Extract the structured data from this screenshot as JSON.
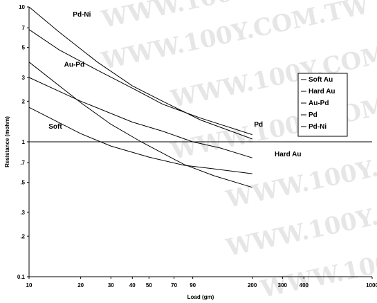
{
  "chart_data": {
    "type": "line",
    "xscale": "log",
    "yscale": "log",
    "xlim": [
      10,
      1000
    ],
    "ylim": [
      0.1,
      10
    ],
    "xlabel": "Load (gm)",
    "ylabel": "Resistance (mohm)",
    "x_ticks": [
      {
        "value": 10,
        "label": "10"
      },
      {
        "value": 20,
        "label": "20"
      },
      {
        "value": 30,
        "label": "30"
      },
      {
        "value": 40,
        "label": "40"
      },
      {
        "value": 50,
        "label": "50"
      },
      {
        "value": 70,
        "label": "70"
      },
      {
        "value": 90,
        "label": "90"
      },
      {
        "value": 200,
        "label": "200"
      },
      {
        "value": 300,
        "label": "300"
      },
      {
        "value": 400,
        "label": "400"
      },
      {
        "value": 1000,
        "label": "1000"
      }
    ],
    "y_ticks": [
      {
        "value": 0.1,
        "label": "0.1"
      },
      {
        "value": 0.2,
        "label": ".2"
      },
      {
        "value": 0.3,
        "label": ".3"
      },
      {
        "value": 0.5,
        "label": ".5"
      },
      {
        "value": 0.7,
        "label": ".7"
      },
      {
        "value": 1,
        "label": "1"
      },
      {
        "value": 2,
        "label": "2"
      },
      {
        "value": 3,
        "label": "3"
      },
      {
        "value": 5,
        "label": "5"
      },
      {
        "value": 7,
        "label": "7"
      },
      {
        "value": 10,
        "label": "10"
      }
    ],
    "reference_line": {
      "y": 1
    },
    "series": [
      {
        "name": "Soft Au",
        "points": [
          [
            10,
            1.8
          ],
          [
            20,
            1.15
          ],
          [
            30,
            0.93
          ],
          [
            50,
            0.77
          ],
          [
            80,
            0.67
          ],
          [
            120,
            0.63
          ],
          [
            200,
            0.58
          ]
        ]
      },
      {
        "name": "Hard Au",
        "points": [
          [
            10,
            3.0
          ],
          [
            20,
            2.0
          ],
          [
            40,
            1.4
          ],
          [
            60,
            1.2
          ],
          [
            90,
            1.0
          ],
          [
            130,
            0.9
          ],
          [
            200,
            0.76
          ]
        ]
      },
      {
        "name": "Au-Pd",
        "points": [
          [
            10,
            3.9
          ],
          [
            20,
            1.95
          ],
          [
            30,
            1.35
          ],
          [
            45,
            1.0
          ],
          [
            80,
            0.68
          ],
          [
            120,
            0.56
          ],
          [
            200,
            0.46
          ]
        ]
      },
      {
        "name": "Pd",
        "points": [
          [
            10,
            6.8
          ],
          [
            15,
            4.8
          ],
          [
            25,
            3.4
          ],
          [
            40,
            2.5
          ],
          [
            60,
            1.9
          ],
          [
            100,
            1.5
          ],
          [
            200,
            1.13
          ]
        ]
      },
      {
        "name": "Pd-Ni",
        "points": [
          [
            10,
            10
          ],
          [
            15,
            6.5
          ],
          [
            25,
            3.9
          ],
          [
            40,
            2.6
          ],
          [
            60,
            2.0
          ],
          [
            100,
            1.45
          ],
          [
            200,
            1.05
          ]
        ]
      }
    ],
    "annotations": [
      {
        "text": "Pd-Ni",
        "x": 18,
        "y": 8.5
      },
      {
        "text": "Au-Pd",
        "x": 16,
        "y": 3.6
      },
      {
        "text": "Soft",
        "x": 13,
        "y": 1.25
      },
      {
        "text": "Pd",
        "x": 205,
        "y": 1.3
      },
      {
        "text": "Hard Au",
        "x": 270,
        "y": 0.78
      }
    ],
    "legend": {
      "position": "right",
      "entries": [
        "Soft Au",
        "Hard Au",
        "Au-Pd",
        "Pd",
        "Pd-Ni"
      ]
    },
    "watermark": "WWW.100Y.COM.TW"
  }
}
